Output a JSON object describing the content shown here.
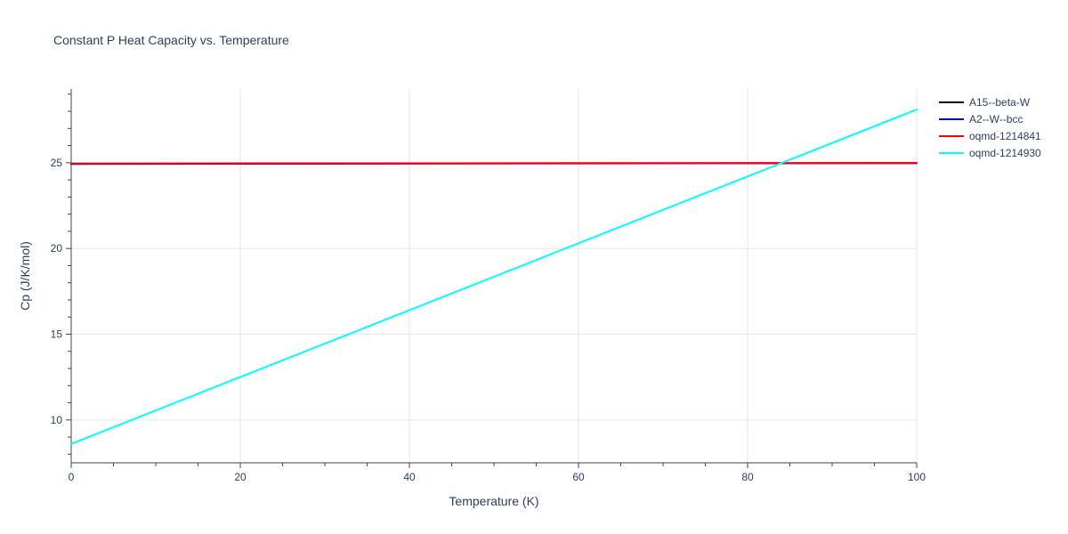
{
  "chart_data": {
    "type": "line",
    "title": "Constant P Heat Capacity vs. Temperature",
    "xlabel": "Temperature (K)",
    "ylabel": "Cp (J/K/mol)",
    "xlim": [
      0,
      100
    ],
    "ylim": [
      7.5,
      29.3
    ],
    "x_ticks": [
      0,
      20,
      40,
      60,
      80,
      100
    ],
    "y_ticks": [
      10,
      15,
      20,
      25
    ],
    "grid": true,
    "legend_position": "top-right",
    "series": [
      {
        "name": "A15--beta-W",
        "color": "#000000",
        "x": [
          0,
          20,
          40,
          60,
          80,
          100
        ],
        "y": [
          24.93,
          24.94,
          24.95,
          24.96,
          24.97,
          24.98
        ]
      },
      {
        "name": "A2--W--bcc",
        "color": "#0000ff",
        "x": [
          0,
          20,
          40,
          60,
          80,
          100
        ],
        "y": [
          24.94,
          24.95,
          24.96,
          24.97,
          24.97,
          24.98
        ]
      },
      {
        "name": "oqmd-1214841",
        "color": "#ff0000",
        "x": [
          0,
          20,
          40,
          60,
          80,
          100
        ],
        "y": [
          24.95,
          24.96,
          24.96,
          24.97,
          24.98,
          24.98
        ]
      },
      {
        "name": "oqmd-1214930",
        "color": "#00ffff",
        "x": [
          0,
          20,
          40,
          60,
          80,
          100
        ],
        "y": [
          8.6,
          12.5,
          16.4,
          20.3,
          24.2,
          28.1
        ]
      }
    ]
  }
}
